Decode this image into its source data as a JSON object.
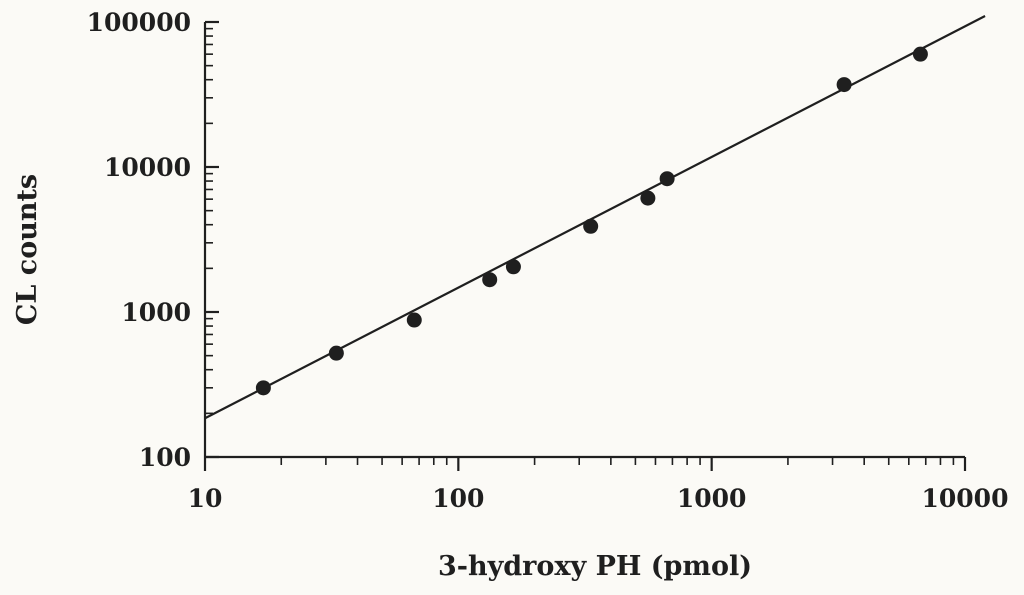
{
  "chart_data": {
    "type": "scatter",
    "xlabel": "3-hydroxy PH (pmol)",
    "ylabel": "CL counts",
    "xscale": "log",
    "yscale": "log",
    "xlim": [
      10,
      10000
    ],
    "ylim": [
      100,
      100000
    ],
    "x_ticks": [
      "10",
      "100",
      "1000",
      "10000"
    ],
    "y_ticks": [
      "100",
      "1000",
      "10000",
      "100000"
    ],
    "grid": false,
    "legend": "none",
    "colors": {
      "ink": "#1f1f1f",
      "background": "#fbfaf6"
    },
    "series": [
      {
        "points": [
          {
            "x": 17,
            "y": 300
          },
          {
            "x": 33,
            "y": 520
          },
          {
            "x": 67,
            "y": 880
          },
          {
            "x": 133,
            "y": 1670
          },
          {
            "x": 165,
            "y": 2050
          },
          {
            "x": 333,
            "y": 3900
          },
          {
            "x": 560,
            "y": 6100
          },
          {
            "x": 667,
            "y": 8300
          },
          {
            "x": 3333,
            "y": 37000
          },
          {
            "x": 6667,
            "y": 60000
          }
        ]
      }
    ],
    "fit_line": {
      "x": [
        10,
        12000
      ],
      "y": [
        185,
        110000
      ]
    }
  }
}
